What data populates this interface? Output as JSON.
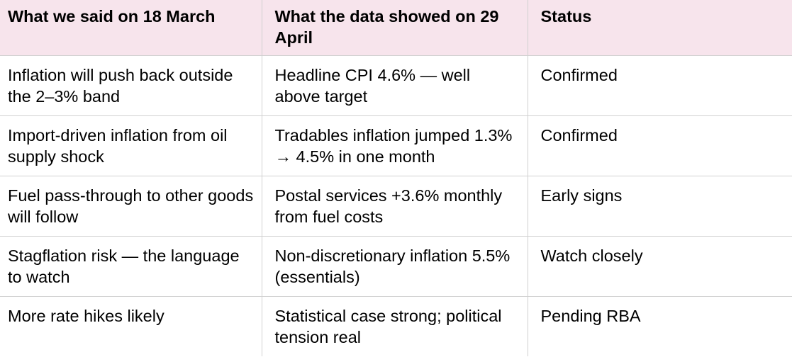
{
  "table": {
    "headers": [
      "What we said on 18 March",
      "What the data showed on 29 April",
      "Status"
    ],
    "rows": [
      [
        "Inflation will push back outside the 2–3% band",
        "Headline CPI 4.6% — well above target",
        "Confirmed"
      ],
      [
        "Import-driven inflation from oil supply shock",
        "Tradables inflation jumped 1.3% → 4.5% in one month",
        "Confirmed"
      ],
      [
        "Fuel pass-through to other goods will follow",
        "Postal services +3.6% monthly from fuel costs",
        "Early signs"
      ],
      [
        "Stagflation risk — the language to watch",
        "Non-discretionary inflation 5.5% (essentials)",
        "Watch closely"
      ],
      [
        "More rate hikes likely",
        "Statistical case strong; political tension real",
        "Pending RBA"
      ]
    ]
  },
  "colors": {
    "header_background": "#f7e4ec",
    "border": "#d0d0d0",
    "text": "#000000"
  }
}
